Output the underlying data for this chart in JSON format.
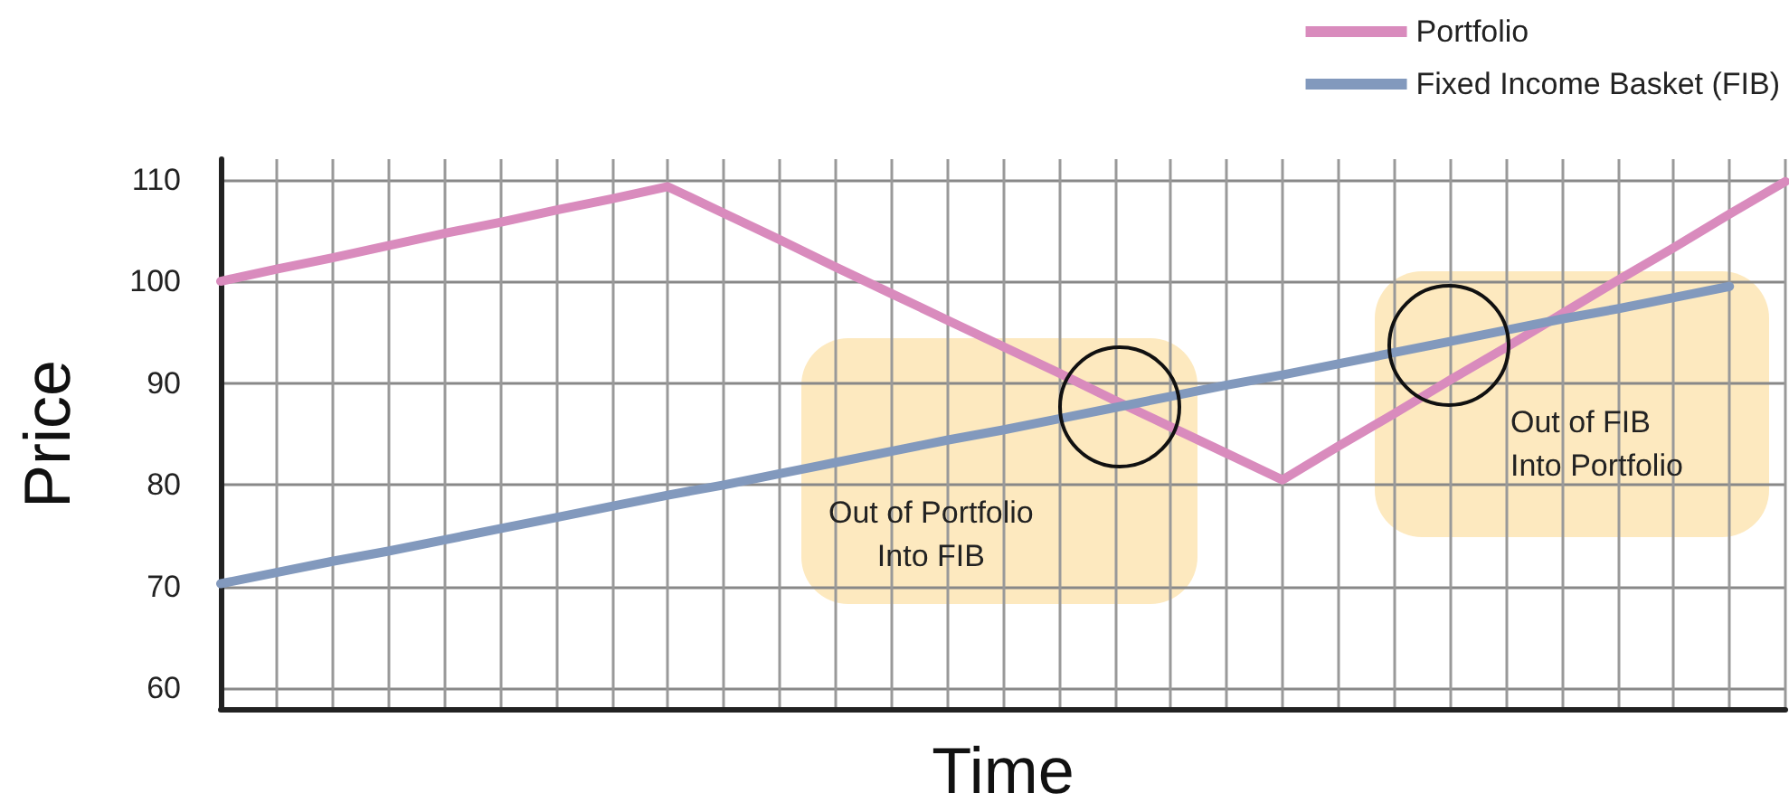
{
  "chart_data": {
    "type": "line",
    "xlabel": "Time",
    "ylabel": "Price",
    "categories": [
      null,
      null,
      null,
      null,
      null,
      null,
      null,
      null,
      null,
      null,
      null,
      null,
      null,
      null,
      null,
      null,
      null,
      null,
      null,
      null,
      null,
      null,
      null,
      null,
      null,
      null,
      null,
      null,
      null
    ],
    "ylim": [
      58,
      112
    ],
    "yticks": [
      60,
      70,
      80,
      90,
      100,
      110
    ],
    "tick_labels": "y",
    "grid": true,
    "legend": "top right",
    "marker": "none",
    "line_style": "solid",
    "series": [
      {
        "name": "Portfolio",
        "color": "#d98bbd",
        "values": [
          100,
          101.2,
          102.3,
          103.5,
          104.7,
          105.8,
          107,
          108.1,
          109.3,
          106.7,
          104.1,
          101.4,
          98.8,
          96.2,
          93.6,
          91,
          88.3,
          85.7,
          83.1,
          80.5,
          83.8,
          87,
          90.3,
          93.5,
          96.8,
          100.1,
          103.3,
          106.6,
          109.8
        ]
      },
      {
        "name": "Fixed Income Basket (FIB)",
        "color": "#8299bd",
        "values": [
          70.3,
          71.4,
          72.5,
          73.5,
          74.6,
          75.7,
          76.8,
          77.9,
          79,
          80,
          81.1,
          82.2,
          83.3,
          84.4,
          85.4,
          86.5,
          87.6,
          88.7,
          89.8,
          90.8,
          91.9,
          93,
          94.1,
          95.2,
          96.3,
          97.3,
          98.4,
          99.5,
          null
        ]
      }
    ],
    "annotations": [
      "Out of Portfolio\nInto FIB",
      "Out of FIB\nInto Portfolio"
    ]
  }
}
